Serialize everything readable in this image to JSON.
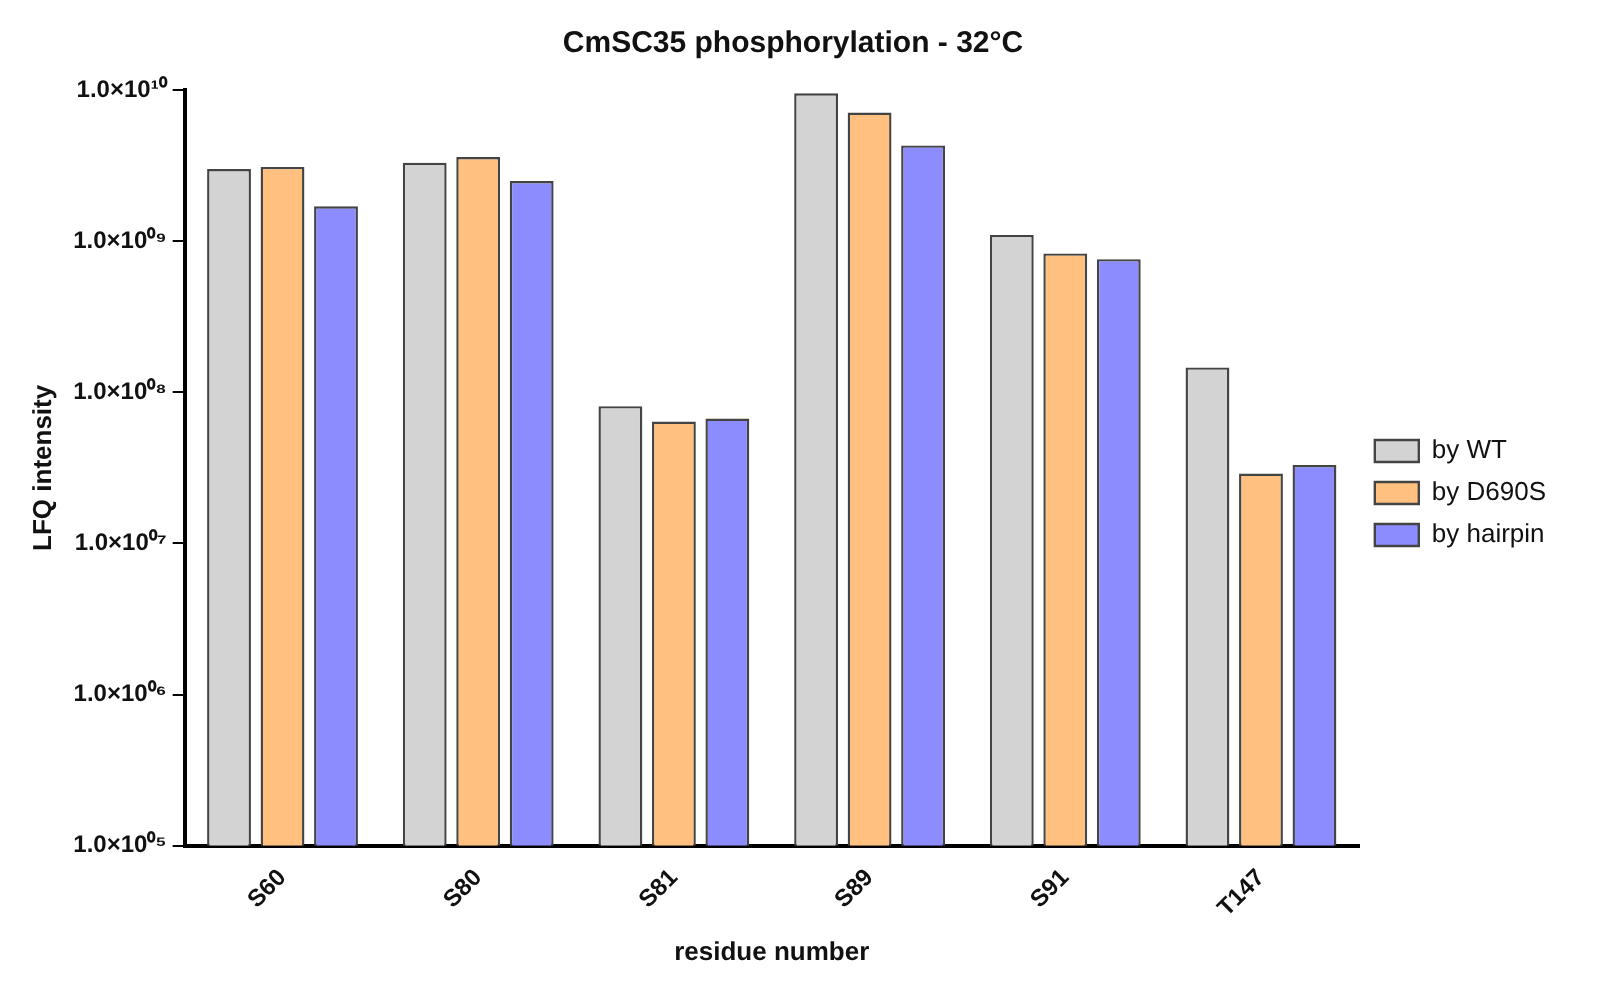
{
  "chart_data": {
    "type": "bar",
    "title": "CmSC35 phosphorylation - 32°C",
    "xlabel": "residue number",
    "ylabel": "LFQ intensity",
    "categories": [
      "S60",
      "S80",
      "S81",
      "S89",
      "S91",
      "T147"
    ],
    "series": [
      {
        "name": "by WT",
        "color": "#d3d3d3",
        "values": [
          3000000000.0,
          3300000000.0,
          81000000.0,
          9500000000.0,
          1100000000.0,
          146000000.0
        ]
      },
      {
        "name": "by D690S",
        "color": "#ffc080",
        "values": [
          3100000000.0,
          3600000000.0,
          64000000.0,
          7100000000.0,
          830000000.0,
          29000000.0
        ]
      },
      {
        "name": "by hairpin",
        "color": "#8c8cff",
        "values": [
          1700000000.0,
          2500000000.0,
          67000000.0,
          4300000000.0,
          760000000.0,
          33000000.0
        ]
      }
    ],
    "log": "y",
    "ylim": [
      100000.0,
      10000000000.0
    ],
    "yticks": [
      {
        "value": 100000.0,
        "label": "1.0×10⁰⁵"
      },
      {
        "value": 1000000.0,
        "label": "1.0×10⁰⁶"
      },
      {
        "value": 10000000.0,
        "label": "1.0×10⁰⁷"
      },
      {
        "value": 100000000.0,
        "label": "1.0×10⁰⁸"
      },
      {
        "value": 1000000000.0,
        "label": "1.0×10⁰⁹"
      },
      {
        "value": 10000000000.0,
        "label": "1.0×10¹⁰"
      }
    ],
    "grid": false,
    "legend": "right"
  }
}
